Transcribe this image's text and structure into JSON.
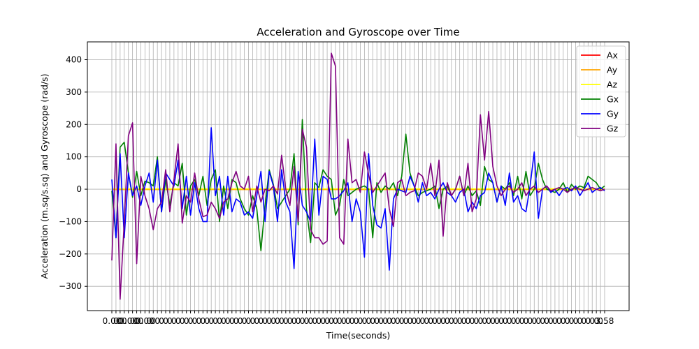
{
  "chart_data": {
    "type": "line",
    "title": "Acceleration and Gyroscope over Time",
    "xlabel": "Time(seconds)",
    "ylabel": "Acceleration (m.sq/s.sq) and Gyroscope (rad/s)",
    "ylim": [
      -375,
      455
    ],
    "y_ticks": [
      -300,
      -200,
      -100,
      0,
      100,
      200,
      300,
      400
    ],
    "grid": true,
    "legend_position": "top-right",
    "x_tick_labels_visible": [
      "0.00",
      "0.00",
      "0.00",
      "3.58"
    ],
    "x_tick_count": 120,
    "x_tick_label_note": "",
    "series": [
      {
        "name": "Ax",
        "color": "#ff0000",
        "values": [
          0,
          0,
          0,
          0,
          0,
          0,
          0,
          0,
          0,
          0,
          0,
          0,
          0,
          0,
          0,
          0,
          0,
          0,
          0,
          0,
          0,
          0,
          0,
          0,
          0,
          0,
          0,
          0,
          0,
          0,
          0,
          0,
          0,
          0,
          0,
          0,
          0,
          0,
          0,
          0,
          0,
          0,
          0,
          0,
          0,
          0,
          0,
          0,
          0,
          0,
          0,
          0,
          0,
          0,
          0,
          0,
          0,
          0,
          0,
          0,
          0,
          0,
          0,
          0,
          0,
          0,
          0,
          0,
          0,
          0,
          0,
          0,
          0,
          0,
          0,
          0,
          0,
          0,
          0,
          0,
          0,
          0,
          0,
          0,
          0,
          0,
          0,
          0,
          0,
          0,
          0,
          0,
          0,
          0,
          0,
          0,
          0,
          0,
          0,
          0,
          0,
          0,
          0,
          0,
          0,
          0,
          0,
          0,
          0,
          0,
          0,
          0,
          0,
          0,
          0,
          0,
          0,
          0,
          0,
          0
        ]
      },
      {
        "name": "Ay",
        "color": "#ffa500",
        "values": [
          -1,
          -1,
          -1,
          -1,
          -1,
          -1,
          -1,
          -1,
          -1,
          -1,
          -1,
          -1,
          -1,
          -1,
          -1,
          -1,
          -1,
          -1,
          -1,
          -1,
          -1,
          -1,
          -1,
          -1,
          -1,
          -1,
          -1,
          -1,
          -1,
          -1,
          -1,
          -1,
          -1,
          -1,
          -1,
          -1,
          -1,
          -1,
          -1,
          -1,
          -1,
          -1,
          -1,
          -1,
          -1,
          -1,
          -1,
          -1,
          -1,
          -1,
          -1,
          -1,
          -1,
          -1,
          -1,
          -1,
          -1,
          -1,
          -1,
          -1,
          -1,
          -1,
          -1,
          -1,
          -1,
          -1,
          -1,
          -1,
          -1,
          -1,
          -1,
          -1,
          -1,
          -1,
          -1,
          -1,
          -1,
          -1,
          -1,
          -1,
          -1,
          -1,
          -1,
          -1,
          -1,
          -1,
          -1,
          -1,
          -1,
          -1,
          -1,
          -1,
          -1,
          -1,
          -1,
          -1,
          -1,
          -1,
          -1,
          -1,
          -1,
          -1,
          -1,
          -1,
          -1,
          -1,
          -1,
          -1,
          -1,
          -1,
          -1,
          -1,
          -1,
          -1,
          -1,
          -1,
          -1,
          -1,
          -1,
          -1
        ]
      },
      {
        "name": "Az",
        "color": "#ffff00",
        "values": [
          1,
          1,
          1,
          1,
          1,
          1,
          1,
          1,
          1,
          1,
          1,
          1,
          1,
          1,
          1,
          1,
          1,
          1,
          1,
          1,
          1,
          1,
          1,
          1,
          1,
          1,
          1,
          1,
          1,
          1,
          1,
          1,
          1,
          1,
          1,
          1,
          1,
          1,
          1,
          1,
          1,
          1,
          1,
          1,
          1,
          1,
          1,
          1,
          1,
          1,
          1,
          1,
          1,
          1,
          1,
          1,
          1,
          1,
          1,
          1,
          1,
          1,
          1,
          1,
          1,
          1,
          1,
          1,
          1,
          1,
          1,
          1,
          1,
          1,
          1,
          1,
          1,
          1,
          1,
          1,
          1,
          1,
          1,
          1,
          1,
          1,
          1,
          1,
          1,
          1,
          1,
          1,
          1,
          1,
          1,
          1,
          1,
          1,
          1,
          1,
          1,
          1,
          1,
          1,
          1,
          1,
          1,
          1,
          1,
          1,
          1,
          1,
          1,
          1,
          1,
          1,
          1,
          1,
          1,
          1
        ]
      },
      {
        "name": "Gx",
        "color": "#008000",
        "values": [
          -5,
          -150,
          130,
          145,
          50,
          -25,
          55,
          -20,
          25,
          20,
          10,
          100,
          -70,
          30,
          -50,
          20,
          10,
          80,
          -80,
          10,
          30,
          -20,
          40,
          -50,
          30,
          60,
          -100,
          10,
          -60,
          30,
          20,
          -30,
          -60,
          -80,
          -20,
          -60,
          -190,
          -50,
          60,
          15,
          -60,
          -40,
          -20,
          0,
          110,
          -110,
          215,
          -60,
          -165,
          20,
          5,
          60,
          40,
          30,
          -80,
          -50,
          30,
          -20,
          -10,
          0,
          5,
          10,
          0,
          -150,
          20,
          -10,
          10,
          0,
          20,
          -20,
          40,
          170,
          50,
          10,
          -20,
          -10,
          -5,
          0,
          10,
          -60,
          0,
          10,
          -20,
          0,
          40,
          -20,
          10,
          -20,
          -5,
          -50,
          70,
          30,
          20,
          -40,
          10,
          0,
          20,
          -20,
          40,
          -30,
          55,
          -20,
          0,
          80,
          30,
          0,
          -5,
          -10,
          0,
          20,
          -10,
          15,
          0,
          10,
          5,
          40,
          30,
          20,
          0,
          10
        ]
      },
      {
        "name": "Gy",
        "color": "#0000ff",
        "values": [
          30,
          -150,
          110,
          -150,
          50,
          -20,
          10,
          -50,
          10,
          50,
          -40,
          90,
          -70,
          50,
          30,
          10,
          90,
          -60,
          40,
          -80,
          20,
          -60,
          -100,
          -100,
          190,
          -20,
          40,
          -80,
          40,
          -70,
          -30,
          -40,
          -80,
          -70,
          -90,
          -20,
          55,
          -100,
          55,
          10,
          -100,
          60,
          -40,
          -70,
          -245,
          55,
          -50,
          -70,
          -100,
          155,
          -80,
          40,
          30,
          -30,
          -30,
          -20,
          -5,
          20,
          -100,
          -30,
          -70,
          -210,
          110,
          -50,
          -110,
          -120,
          -60,
          -250,
          -30,
          0,
          -5,
          -10,
          40,
          10,
          -40,
          20,
          -20,
          -10,
          -30,
          0,
          20,
          -10,
          -20,
          -40,
          -10,
          0,
          -70,
          -40,
          -60,
          -20,
          -10,
          50,
          20,
          -40,
          10,
          -50,
          50,
          -40,
          -20,
          -60,
          -70,
          10,
          115,
          -90,
          0,
          10,
          -10,
          0,
          -20,
          0,
          5,
          -5,
          10,
          -20,
          0,
          20,
          -10,
          0,
          5,
          -5
        ]
      },
      {
        "name": "Gz",
        "color": "#800080",
        "values": [
          -220,
          140,
          -340,
          -100,
          165,
          205,
          -230,
          40,
          -20,
          -60,
          -125,
          -60,
          -40,
          60,
          -70,
          30,
          140,
          -105,
          -20,
          -40,
          50,
          -30,
          -85,
          -80,
          -40,
          -60,
          -90,
          -40,
          -30,
          20,
          55,
          10,
          0,
          40,
          -70,
          10,
          -40,
          0,
          -5,
          10,
          -15,
          105,
          0,
          -50,
          70,
          -100,
          185,
          130,
          -125,
          -150,
          -150,
          -170,
          -160,
          420,
          380,
          -150,
          -170,
          155,
          20,
          30,
          -10,
          115,
          45,
          -10,
          10,
          30,
          50,
          -60,
          -115,
          20,
          30,
          -20,
          -10,
          -5,
          50,
          40,
          0,
          80,
          -20,
          90,
          -145,
          20,
          -20,
          0,
          40,
          -20,
          80,
          -70,
          -30,
          230,
          90,
          240,
          70,
          10,
          -20,
          0,
          10,
          -10,
          0,
          20,
          -20,
          0,
          10,
          -10,
          0,
          10,
          -5,
          0,
          5,
          0,
          -10,
          0,
          5,
          0,
          -5,
          0,
          5,
          0,
          -5,
          0
        ]
      }
    ]
  }
}
